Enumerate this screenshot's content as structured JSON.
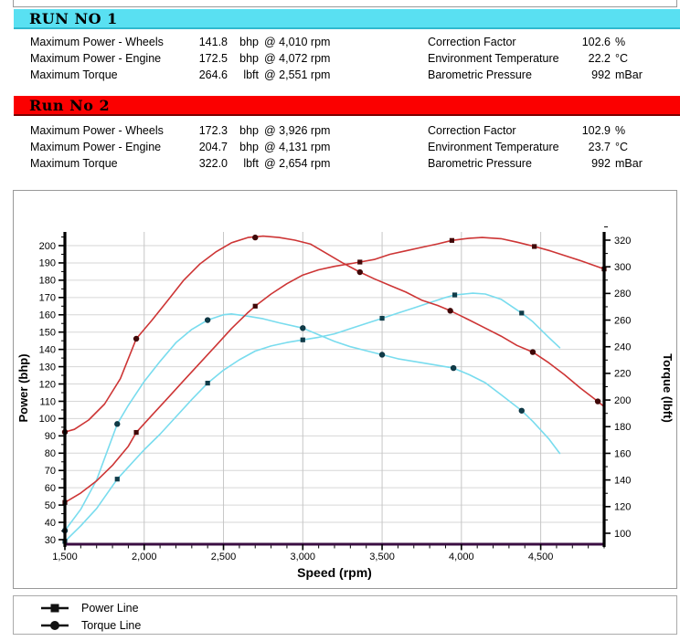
{
  "runs": [
    {
      "title": "RUN NO 1",
      "header_bg": "#59e0f2",
      "left_rows": [
        {
          "label": "Maximum Power - Wheels",
          "value": "141.8",
          "unit": "bhp",
          "at": "@ 4,010 rpm"
        },
        {
          "label": "Maximum Power - Engine",
          "value": "172.5",
          "unit": "bhp",
          "at": "@ 4,072 rpm"
        },
        {
          "label": "Maximum Torque",
          "value": "264.6",
          "unit": "lbft",
          "at": "@ 2,551 rpm"
        }
      ],
      "right_rows": [
        {
          "label": "Correction Factor",
          "value": "102.6",
          "unit": "%"
        },
        {
          "label": "Environment Temperature",
          "value": "22.2",
          "unit": "°C"
        },
        {
          "label": "Barometric Pressure",
          "value": "992",
          "unit": "mBar"
        }
      ]
    },
    {
      "title": "Run No 2",
      "header_bg": "#fb0000",
      "left_rows": [
        {
          "label": "Maximum Power - Wheels",
          "value": "172.3",
          "unit": "bhp",
          "at": "@ 3,926 rpm"
        },
        {
          "label": "Maximum Power - Engine",
          "value": "204.7",
          "unit": "bhp",
          "at": "@ 4,131 rpm"
        },
        {
          "label": "Maximum Torque",
          "value": "322.0",
          "unit": "lbft",
          "at": "@ 2,654 rpm"
        }
      ],
      "right_rows": [
        {
          "label": "Correction Factor",
          "value": "102.9",
          "unit": "%"
        },
        {
          "label": "Environment Temperature",
          "value": "23.7",
          "unit": "°C"
        },
        {
          "label": "Barometric Pressure",
          "value": "992",
          "unit": "mBar"
        }
      ]
    }
  ],
  "chart_data": {
    "type": "line",
    "xlabel": "Speed (rpm)",
    "ylabel_left": "Power (bhp)",
    "ylabel_right": "Torque (lbft)",
    "xlim": [
      1500,
      4900
    ],
    "x_ticks": [
      1500,
      2000,
      2500,
      3000,
      3500,
      4000,
      4500
    ],
    "x_minor_step": 100,
    "x_gridlines": [
      2000,
      2500,
      3000,
      3500,
      4000,
      4500
    ],
    "y_left_range": [
      30,
      200
    ],
    "y_left_ticks": [
      30,
      40,
      50,
      60,
      70,
      80,
      90,
      100,
      110,
      120,
      130,
      140,
      150,
      160,
      170,
      180,
      190,
      200
    ],
    "y_left_gridlines": [
      40,
      50,
      60,
      70,
      80,
      90,
      100,
      110,
      120,
      130,
      140,
      150,
      160,
      170,
      180,
      190,
      200
    ],
    "y_right_range": [
      100,
      320
    ],
    "y_right_ticks": [
      100,
      120,
      140,
      160,
      180,
      200,
      220,
      240,
      260,
      280,
      300,
      320
    ],
    "grid": "on",
    "legend_position": "bottom-left",
    "colors": {
      "run1": "#79dcee",
      "run2": "#cd3535",
      "run1_marker": "#103c49",
      "run2_marker": "#400808",
      "baseline": "#3a0d42"
    },
    "series": [
      {
        "name": "Run 1 Power",
        "axis": "left",
        "color": "#79dcee",
        "marker": "square",
        "marker_color": "#103c49",
        "points": [
          [
            1500,
            29
          ],
          [
            1600,
            38
          ],
          [
            1700,
            48
          ],
          [
            1830,
            65
          ],
          [
            1900,
            72
          ],
          [
            2000,
            82
          ],
          [
            2100,
            91
          ],
          [
            2200,
            101
          ],
          [
            2300,
            111
          ],
          [
            2400,
            120.5
          ],
          [
            2500,
            128
          ],
          [
            2600,
            134
          ],
          [
            2700,
            139
          ],
          [
            2800,
            142
          ],
          [
            2900,
            144
          ],
          [
            3000,
            145.5
          ],
          [
            3100,
            147
          ],
          [
            3200,
            149
          ],
          [
            3300,
            152
          ],
          [
            3400,
            155
          ],
          [
            3500,
            158
          ],
          [
            3600,
            161
          ],
          [
            3700,
            164
          ],
          [
            3800,
            167
          ],
          [
            3900,
            170
          ],
          [
            3958,
            171.5
          ],
          [
            4072,
            172.5
          ],
          [
            4150,
            172
          ],
          [
            4250,
            169
          ],
          [
            4380,
            161
          ],
          [
            4450,
            156
          ],
          [
            4550,
            147
          ],
          [
            4620,
            141
          ]
        ],
        "marker_points": [
          [
            1500,
            29
          ],
          [
            1830,
            65
          ],
          [
            2400,
            120.5
          ],
          [
            3000,
            145.5
          ],
          [
            3500,
            158
          ],
          [
            3958,
            171.5
          ],
          [
            4380,
            161
          ]
        ]
      },
      {
        "name": "Run 1 Torque",
        "axis": "right",
        "color": "#79dcee",
        "marker": "circle",
        "marker_color": "#103c49",
        "points": [
          [
            1500,
            102
          ],
          [
            1600,
            118
          ],
          [
            1700,
            140
          ],
          [
            1830,
            182
          ],
          [
            1900,
            196
          ],
          [
            2000,
            214
          ],
          [
            2100,
            229
          ],
          [
            2200,
            243
          ],
          [
            2300,
            253
          ],
          [
            2400,
            260
          ],
          [
            2500,
            264
          ],
          [
            2551,
            264.6
          ],
          [
            2650,
            263
          ],
          [
            2750,
            261
          ],
          [
            2850,
            258
          ],
          [
            3000,
            254
          ],
          [
            3100,
            249
          ],
          [
            3200,
            244
          ],
          [
            3300,
            240
          ],
          [
            3400,
            237
          ],
          [
            3500,
            234
          ],
          [
            3600,
            231
          ],
          [
            3700,
            229
          ],
          [
            3800,
            227
          ],
          [
            3950,
            224
          ],
          [
            4050,
            219
          ],
          [
            4150,
            213
          ],
          [
            4250,
            204
          ],
          [
            4380,
            192
          ],
          [
            4450,
            184
          ],
          [
            4550,
            171
          ],
          [
            4620,
            160
          ]
        ],
        "marker_points": [
          [
            1500,
            102
          ],
          [
            1830,
            182
          ],
          [
            2400,
            260
          ],
          [
            3000,
            254
          ],
          [
            3500,
            234
          ],
          [
            3950,
            224
          ],
          [
            4380,
            192
          ]
        ]
      },
      {
        "name": "Run 2 Power",
        "axis": "left",
        "color": "#cd3535",
        "marker": "square",
        "marker_color": "#400808",
        "points": [
          [
            1500,
            51.5
          ],
          [
            1600,
            57
          ],
          [
            1700,
            64
          ],
          [
            1800,
            73
          ],
          [
            1900,
            84
          ],
          [
            1950,
            92
          ],
          [
            2050,
            102
          ],
          [
            2150,
            112
          ],
          [
            2250,
            122
          ],
          [
            2350,
            132
          ],
          [
            2450,
            142
          ],
          [
            2550,
            152
          ],
          [
            2650,
            161
          ],
          [
            2700,
            165
          ],
          [
            2800,
            172
          ],
          [
            2900,
            178
          ],
          [
            3000,
            183
          ],
          [
            3100,
            186
          ],
          [
            3200,
            188
          ],
          [
            3360,
            190.5
          ],
          [
            3450,
            192
          ],
          [
            3550,
            195
          ],
          [
            3650,
            197
          ],
          [
            3750,
            199
          ],
          [
            3850,
            201
          ],
          [
            3940,
            203
          ],
          [
            4050,
            204.3
          ],
          [
            4131,
            204.7
          ],
          [
            4250,
            204
          ],
          [
            4350,
            202
          ],
          [
            4460,
            199.5
          ],
          [
            4560,
            197
          ],
          [
            4660,
            194
          ],
          [
            4760,
            191
          ],
          [
            4900,
            186.5
          ]
        ],
        "marker_points": [
          [
            1500,
            51.5
          ],
          [
            1950,
            92
          ],
          [
            2700,
            165
          ],
          [
            3360,
            190.5
          ],
          [
            3940,
            203
          ],
          [
            4460,
            199.5
          ],
          [
            4900,
            186.5
          ]
        ]
      },
      {
        "name": "Run 2 Torque",
        "axis": "right",
        "color": "#cd3535",
        "marker": "circle",
        "marker_color": "#400808",
        "points": [
          [
            1500,
            176
          ],
          [
            1560,
            178
          ],
          [
            1650,
            185
          ],
          [
            1750,
            197
          ],
          [
            1850,
            216
          ],
          [
            1950,
            246
          ],
          [
            2050,
            260
          ],
          [
            2150,
            275
          ],
          [
            2250,
            290
          ],
          [
            2350,
            302
          ],
          [
            2450,
            311
          ],
          [
            2550,
            318
          ],
          [
            2654,
            322
          ],
          [
            2750,
            323
          ],
          [
            2850,
            322
          ],
          [
            2950,
            320
          ],
          [
            3050,
            317
          ],
          [
            3150,
            310
          ],
          [
            3250,
            303
          ],
          [
            3360,
            296
          ],
          [
            3450,
            291
          ],
          [
            3550,
            286
          ],
          [
            3650,
            281
          ],
          [
            3750,
            275
          ],
          [
            3850,
            271
          ],
          [
            3930,
            267
          ],
          [
            4050,
            260
          ],
          [
            4150,
            254
          ],
          [
            4250,
            248
          ],
          [
            4350,
            241
          ],
          [
            4450,
            236
          ],
          [
            4550,
            228
          ],
          [
            4650,
            219
          ],
          [
            4750,
            209
          ],
          [
            4860,
            199
          ],
          [
            4900,
            195
          ]
        ],
        "marker_points": [
          [
            1500,
            176
          ],
          [
            1950,
            246
          ],
          [
            2700,
            322
          ],
          [
            3360,
            296
          ],
          [
            3930,
            267
          ],
          [
            4450,
            236
          ],
          [
            4860,
            199
          ]
        ]
      }
    ]
  },
  "legend": {
    "items": [
      {
        "label": "Power Line",
        "marker": "square"
      },
      {
        "label": "Torque Line",
        "marker": "circle"
      }
    ]
  }
}
